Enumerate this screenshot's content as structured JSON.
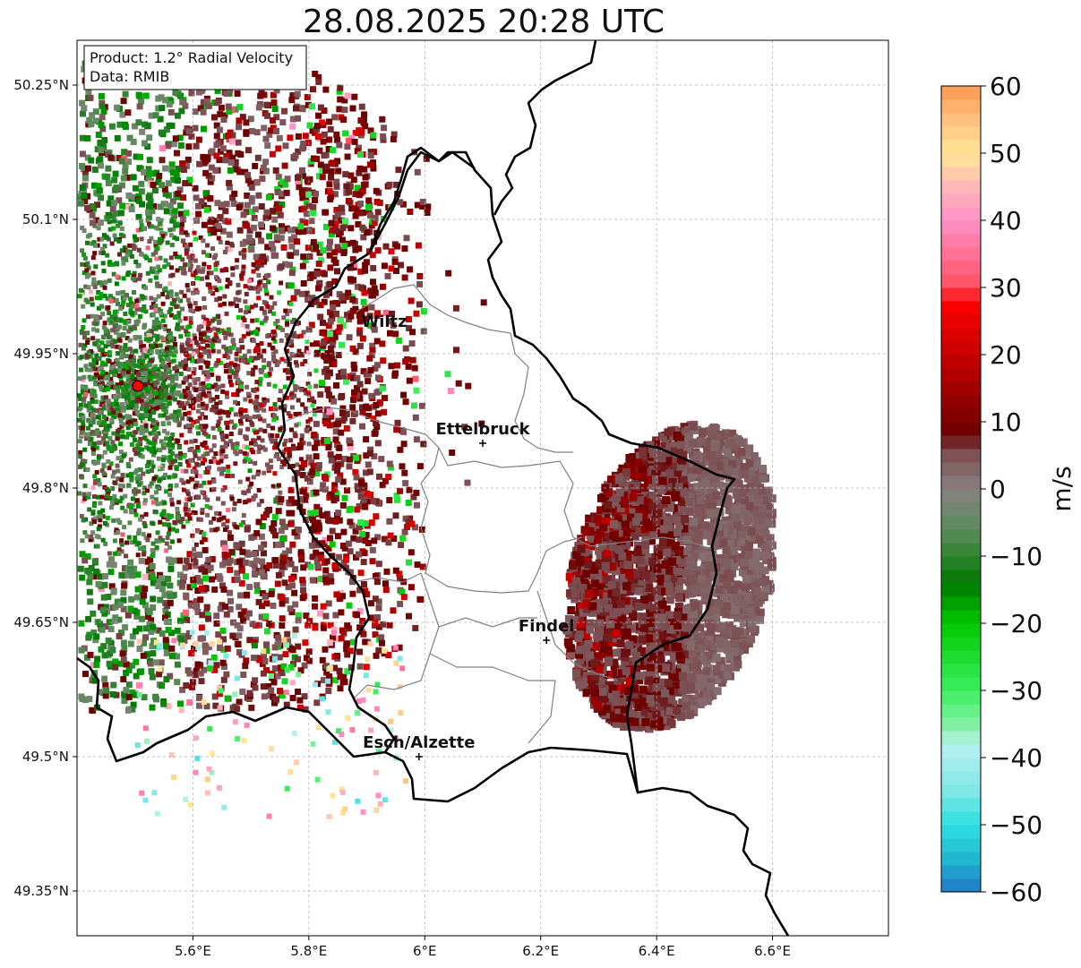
{
  "title": "28.08.2025 20:28 UTC",
  "info_box": {
    "product": "Product: 1.2° Radial Velocity",
    "data": "Data: RMIB"
  },
  "map_extent": {
    "lon_min": 5.4,
    "lon_max": 6.8,
    "lat_min": 49.3,
    "lat_max": 50.3
  },
  "lat_ticks": [
    {
      "value": 50.25,
      "label": "50.25°N"
    },
    {
      "value": 50.1,
      "label": "50.1°N"
    },
    {
      "value": 49.95,
      "label": "49.95°N"
    },
    {
      "value": 49.8,
      "label": "49.8°N"
    },
    {
      "value": 49.65,
      "label": "49.65°N"
    },
    {
      "value": 49.5,
      "label": "49.5°N"
    },
    {
      "value": 49.35,
      "label": "49.35°N"
    }
  ],
  "lon_ticks": [
    {
      "value": 5.6,
      "label": "5.6°E"
    },
    {
      "value": 5.8,
      "label": "5.8°E"
    },
    {
      "value": 6.0,
      "label": "6°E"
    },
    {
      "value": 6.2,
      "label": "6.2°E"
    },
    {
      "value": 6.4,
      "label": "6.4°E"
    },
    {
      "value": 6.6,
      "label": "6.6°E"
    }
  ],
  "radar_site": {
    "lon": 5.505,
    "lat": 49.914
  },
  "cities": [
    {
      "name": "Wiltz",
      "lon": 5.93,
      "lat": 49.97,
      "marker": false
    },
    {
      "name": "Ettelbruck",
      "lon": 6.1,
      "lat": 49.85,
      "marker": true
    },
    {
      "name": "Findel",
      "lon": 6.21,
      "lat": 49.63,
      "marker": true
    },
    {
      "name": "Esch/Alzette",
      "lon": 5.99,
      "lat": 49.5,
      "marker": true
    }
  ],
  "colorbar": {
    "label": "m/s",
    "min": -60,
    "max": 60,
    "ticks": [
      {
        "value": 60,
        "label": "60"
      },
      {
        "value": 50,
        "label": "50"
      },
      {
        "value": 40,
        "label": "40"
      },
      {
        "value": 30,
        "label": "30"
      },
      {
        "value": 20,
        "label": "20"
      },
      {
        "value": 10,
        "label": "10"
      },
      {
        "value": 0,
        "label": "0"
      },
      {
        "value": -10,
        "label": "−10"
      },
      {
        "value": -20,
        "label": "−20"
      },
      {
        "value": -30,
        "label": "−30"
      },
      {
        "value": -40,
        "label": "−40"
      },
      {
        "value": -50,
        "label": "−50"
      },
      {
        "value": -60,
        "label": "−60"
      }
    ],
    "stops": [
      {
        "v": -60,
        "color": "#1f78c8"
      },
      {
        "v": -55,
        "color": "#20b8d0"
      },
      {
        "v": -50,
        "color": "#2ee0e0"
      },
      {
        "v": -45,
        "color": "#7fe6e6"
      },
      {
        "v": -38,
        "color": "#b8f0f0"
      },
      {
        "v": -36,
        "color": "#90f0b0"
      },
      {
        "v": -30,
        "color": "#3cf060"
      },
      {
        "v": -20,
        "color": "#00c800"
      },
      {
        "v": -14,
        "color": "#007800"
      },
      {
        "v": -6,
        "color": "#5c8c5c"
      },
      {
        "v": 0,
        "color": "#8a8080"
      },
      {
        "v": 6,
        "color": "#7a4a4e"
      },
      {
        "v": 8,
        "color": "#6a0000"
      },
      {
        "v": 20,
        "color": "#c80000"
      },
      {
        "v": 28,
        "color": "#ff0000"
      },
      {
        "v": 30,
        "color": "#ff5060"
      },
      {
        "v": 40,
        "color": "#ff90c8"
      },
      {
        "v": 45,
        "color": "#ffb8b8"
      },
      {
        "v": 50,
        "color": "#ffe898"
      },
      {
        "v": 55,
        "color": "#ffc080"
      },
      {
        "v": 60,
        "color": "#ff9850"
      }
    ]
  },
  "colors": {
    "border_country": "#000000",
    "border_admin": "#808080",
    "radar_site": "#ff0000",
    "grid": "#b0b0b0"
  }
}
